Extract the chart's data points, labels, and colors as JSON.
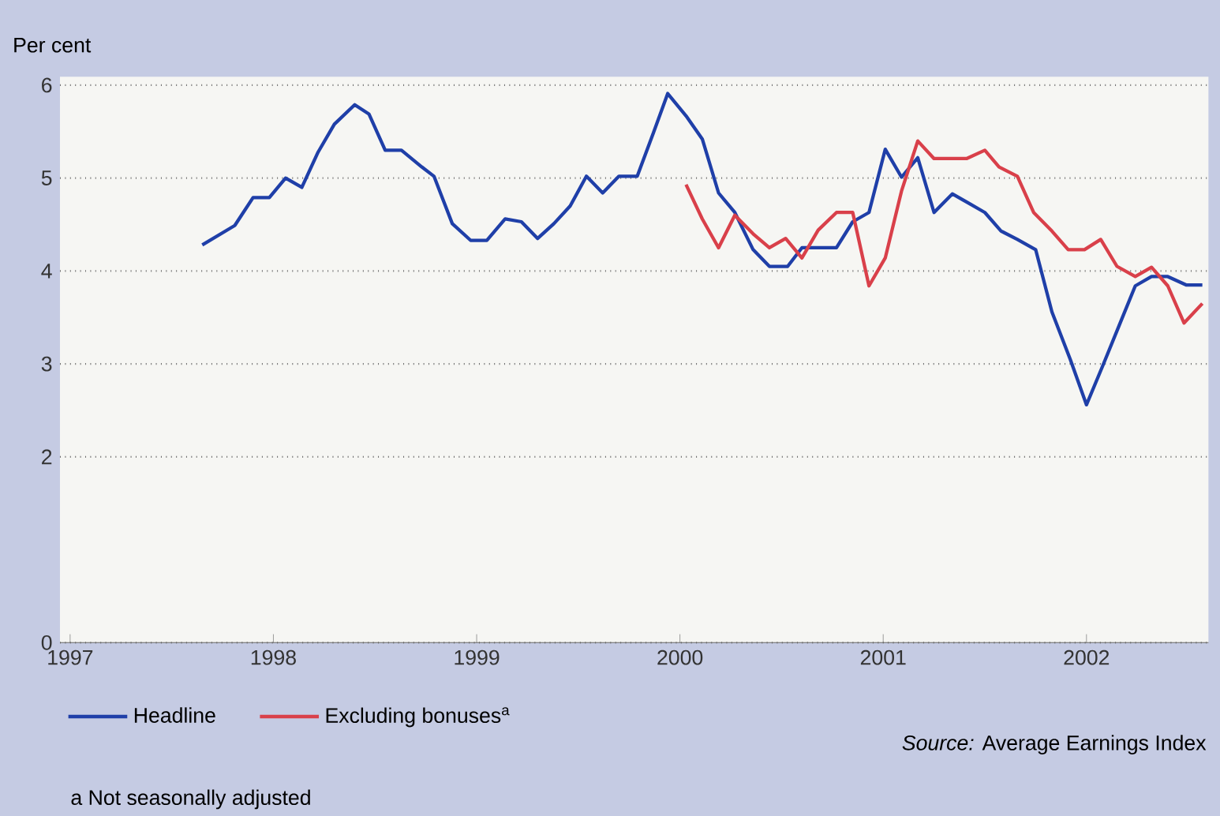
{
  "chart_data": {
    "type": "line",
    "ylabel": "Per cent",
    "xlim": [
      1996.95,
      2002.6
    ],
    "xticks": [
      1997,
      1998,
      1999,
      2000,
      2001,
      2002
    ],
    "ylim": [
      0,
      6
    ],
    "yticks": [
      0,
      2,
      3,
      4,
      5,
      6
    ],
    "grid": "y",
    "legend": "bottom",
    "marker": "none",
    "line_style": "solid",
    "series": [
      {
        "name": "Headline",
        "color": "#1f3fa8",
        "x": [
          1997.65,
          1997.81,
          1997.9,
          1997.98,
          1998.06,
          1998.14,
          1998.22,
          1998.3,
          1998.4,
          1998.47,
          1998.55,
          1998.63,
          1998.73,
          1998.79,
          1998.88,
          1998.97,
          1999.05,
          1999.14,
          1999.22,
          1999.3,
          1999.38,
          1999.46,
          1999.54,
          1999.62,
          1999.7,
          1999.79,
          1999.87,
          1999.94,
          2000.03,
          2000.11,
          2000.19,
          2000.27,
          2000.36,
          2000.44,
          2000.53,
          2000.6,
          2000.68,
          2000.77,
          2000.85,
          2000.93,
          2001.01,
          2001.09,
          2001.17,
          2001.25,
          2001.34,
          2001.42,
          2001.5,
          2001.58,
          2001.66,
          2001.75,
          2001.83,
          2001.92,
          2002.0,
          2002.08,
          2002.16,
          2002.24,
          2002.32,
          2002.4,
          2002.49,
          2002.57
        ],
        "values": [
          4.28,
          4.49,
          4.79,
          4.79,
          5.0,
          4.9,
          5.28,
          5.58,
          5.79,
          5.69,
          5.3,
          5.3,
          5.12,
          5.02,
          4.51,
          4.33,
          4.33,
          4.56,
          4.53,
          4.35,
          4.51,
          4.7,
          5.02,
          4.84,
          5.02,
          5.02,
          5.49,
          5.91,
          5.67,
          5.42,
          4.84,
          4.63,
          4.23,
          4.05,
          4.05,
          4.25,
          4.25,
          4.25,
          4.53,
          4.63,
          5.31,
          5.01,
          5.22,
          4.63,
          4.83,
          4.73,
          4.63,
          4.43,
          4.34,
          4.23,
          3.56,
          3.05,
          2.56,
          2.98,
          3.41,
          3.84,
          3.94,
          3.94,
          3.85,
          3.85
        ]
      },
      {
        "name": "Excluding bonuses$^{a}$",
        "color": "#d9404a",
        "x": [
          2000.03,
          2000.11,
          2000.19,
          2000.27,
          2000.36,
          2000.44,
          2000.52,
          2000.6,
          2000.68,
          2000.77,
          2000.85,
          2000.93,
          2001.01,
          2001.09,
          2001.17,
          2001.25,
          2001.33,
          2001.41,
          2001.5,
          2001.57,
          2001.66,
          2001.74,
          2001.83,
          2001.91,
          2001.99,
          2002.07,
          2002.15,
          2002.24,
          2002.32,
          2002.4,
          2002.48,
          2002.57
        ],
        "values": [
          4.93,
          4.56,
          4.25,
          4.6,
          4.4,
          4.25,
          4.35,
          4.14,
          4.44,
          4.63,
          4.63,
          3.84,
          4.14,
          4.86,
          5.4,
          5.21,
          5.21,
          5.21,
          5.3,
          5.12,
          5.02,
          4.63,
          4.43,
          4.23,
          4.23,
          4.34,
          4.05,
          3.94,
          4.04,
          3.84,
          3.44,
          3.65
        ]
      }
    ],
    "annotations": [
      "*Source:* Average Earnings Index",
      "a  Not seasonally adjusted"
    ]
  }
}
